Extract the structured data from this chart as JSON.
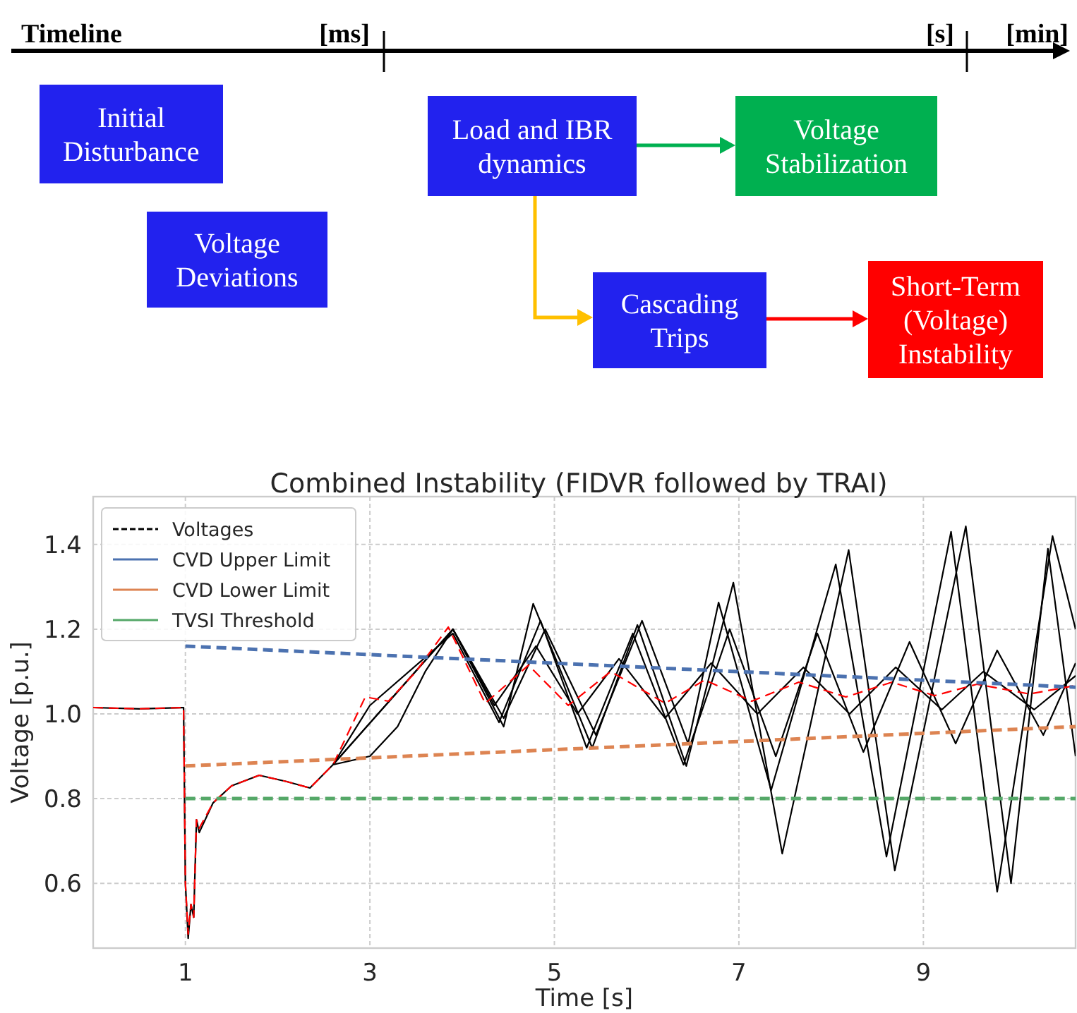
{
  "chart_data": [
    {
      "type": "other",
      "title": "Timeline",
      "categories": [
        "[ms]",
        "[s]",
        "[min]"
      ],
      "annotations": [
        "Initial Disturbance",
        "Voltage Deviations",
        "Load and IBR dynamics",
        "Voltage Stabilization",
        "Cascading Trips",
        "Short-Term (Voltage) Instability"
      ],
      "colors": [
        "#2222ee",
        "#2222ee",
        "#2222ee",
        "#00b050",
        "#2222ee",
        "#ff0000"
      ]
    },
    {
      "type": "line",
      "title": "Combined Instability (FIDVR followed by TRAI)",
      "xlabel": "Time [s]",
      "ylabel": "Voltage [p.u.]",
      "xlim": [
        0,
        10.65
      ],
      "ylim": [
        0.447,
        1.513
      ],
      "xticks": [
        1,
        3,
        5,
        7,
        9
      ],
      "yticks": [
        0.6,
        0.8,
        {
          "value": 1.0,
          "label": "1.0"
        },
        1.2,
        1.4
      ],
      "grid": true,
      "legend": "top left",
      "series": [
        {
          "color": "#000000",
          "x": [
            2.6,
            3.9,
            4.45,
            4.77,
            5.41,
            5.9,
            6.43,
            6.94,
            7.47,
            8.19,
            8.69,
            9.46,
            9.95,
            10.35,
            10.65
          ],
          "values": [
            0.88,
            1.2,
            0.97,
            1.26,
            0.92,
            1.21,
            0.877,
            1.31,
            0.67,
            1.387,
            0.63,
            1.443,
            0.6,
            1.39,
            0.9
          ]
        },
        {
          "color": "#000000",
          "x": [
            2.6,
            3.9,
            4.45,
            4.9,
            5.45,
            5.95,
            6.45,
            6.78,
            7.35,
            8.05,
            8.6,
            9.3,
            9.8,
            10.4,
            10.65
          ],
          "values": [
            0.88,
            1.2,
            0.99,
            1.2,
            0.95,
            1.22,
            0.93,
            1.263,
            0.82,
            1.353,
            0.663,
            1.43,
            0.58,
            1.42,
            1.2
          ]
        },
        {
          "color": "#000000",
          "x": [
            2.6,
            3.0,
            3.9,
            4.4,
            4.85,
            5.35,
            5.85,
            6.4,
            6.9,
            7.4,
            7.85,
            8.35,
            8.85,
            9.35,
            9.8,
            10.3,
            10.65
          ],
          "values": [
            0.88,
            1.02,
            1.19,
            0.98,
            1.22,
            0.92,
            1.19,
            0.88,
            1.2,
            0.9,
            1.19,
            0.91,
            1.17,
            0.93,
            1.15,
            0.95,
            1.12
          ]
        },
        {
          "name": "Voltages",
          "color": "#000000",
          "x": [
            0,
            0.5,
            0.98,
            1.0,
            1.03,
            1.06,
            1.09,
            1.12,
            1.15,
            1.3,
            1.5,
            1.8,
            2.1,
            2.35,
            2.6,
            3.0,
            3.3,
            3.6,
            3.9,
            4.35,
            4.8,
            5.25,
            5.7,
            6.2,
            6.7,
            7.2,
            7.7,
            8.2,
            8.7,
            9.2,
            9.65,
            10.2,
            10.65
          ],
          "values": [
            1.015,
            1.012,
            1.015,
            0.6,
            0.47,
            0.55,
            0.52,
            0.75,
            0.72,
            0.79,
            0.83,
            0.855,
            0.84,
            0.825,
            0.88,
            0.9,
            0.97,
            1.1,
            1.2,
            1.02,
            1.16,
            1.0,
            1.13,
            0.99,
            1.12,
            1.0,
            1.11,
            1.0,
            1.11,
            1.01,
            1.1,
            1.01,
            1.09
          ]
        },
        {
          "color": "#ff0000",
          "line_style": "dashed",
          "x": [
            0,
            0.5,
            0.98,
            1.0,
            1.03,
            1.06,
            1.09,
            1.12,
            1.15,
            1.3,
            1.5,
            1.8,
            2.1,
            2.35,
            2.6,
            2.95,
            3.2,
            3.5,
            3.85,
            4.25,
            4.72,
            5.15,
            5.61,
            6.2,
            6.63,
            7.14,
            7.65,
            8.16,
            8.66,
            9.12,
            9.58,
            10.15,
            10.65
          ],
          "values": [
            1.015,
            1.012,
            1.015,
            0.6,
            0.48,
            0.55,
            0.52,
            0.75,
            0.73,
            0.79,
            0.83,
            0.855,
            0.84,
            0.825,
            0.88,
            1.04,
            1.03,
            1.1,
            1.205,
            1.025,
            1.115,
            1.02,
            1.1,
            1.025,
            1.08,
            1.03,
            1.075,
            1.04,
            1.075,
            1.043,
            1.07,
            1.047,
            1.067
          ]
        },
        {
          "name": "CVD Upper Limit",
          "color": "#4c72b0",
          "line_style": "dashed",
          "x": [
            1,
            10.65
          ],
          "values": [
            1.16,
            1.063
          ]
        },
        {
          "name": "CVD Lower Limit",
          "color": "#dd8452",
          "line_style": "dashed",
          "x": [
            1,
            10.65
          ],
          "values": [
            0.877,
            0.97
          ]
        },
        {
          "name": "TVSI Threshold",
          "color": "#55a868",
          "line_style": "dashed",
          "x": [
            1,
            10.65
          ],
          "values": [
            0.8,
            0.8
          ]
        }
      ]
    }
  ]
}
